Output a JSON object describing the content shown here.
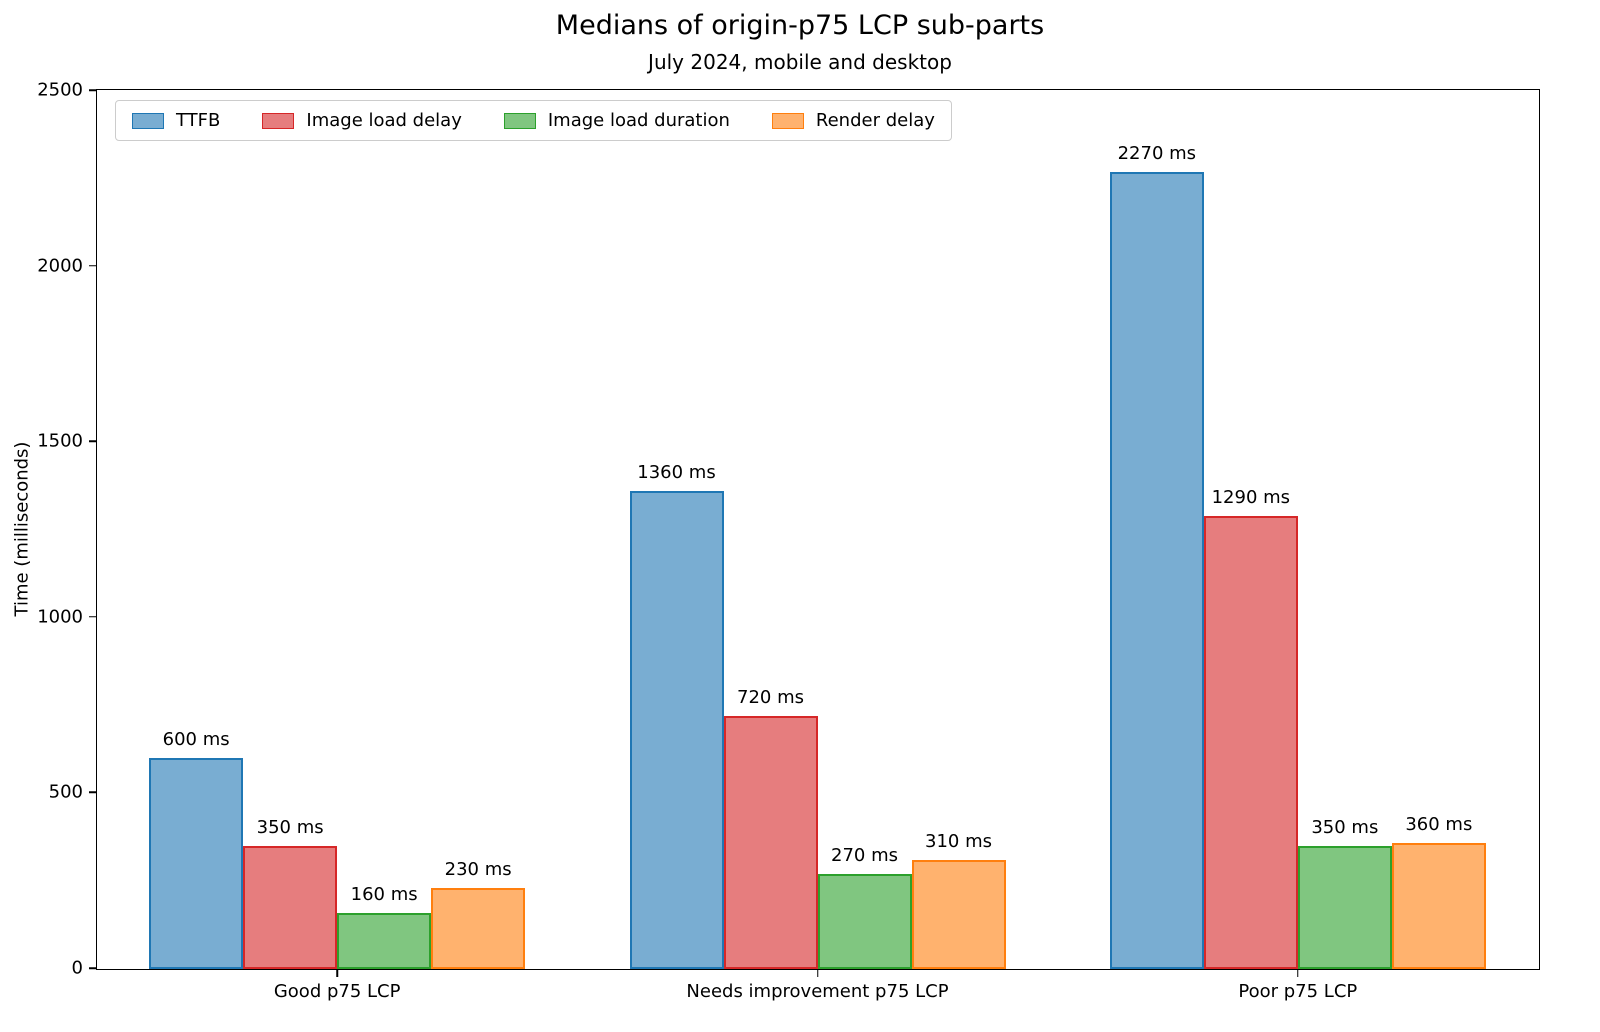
{
  "chart_data": {
    "type": "bar",
    "title": "Medians of origin-p75 LCP sub-parts",
    "subtitle": "July 2024, mobile and desktop",
    "categories": [
      "Good p75 LCP",
      "Needs improvement p75 LCP",
      "Poor p75 LCP"
    ],
    "series": [
      {
        "name": "TTFB",
        "values": [
          600,
          1360,
          2270
        ],
        "fill": "#79add2",
        "edge": "#1f77b4"
      },
      {
        "name": "Image load delay",
        "values": [
          350,
          720,
          1290
        ],
        "fill": "#e67d7e",
        "edge": "#d62728"
      },
      {
        "name": "Image load duration",
        "values": [
          160,
          270,
          350
        ],
        "fill": "#80c680",
        "edge": "#2ca02c"
      },
      {
        "name": "Render delay",
        "values": [
          230,
          310,
          360
        ],
        "fill": "#ffb26e",
        "edge": "#ff7f0e"
      }
    ],
    "value_labels": [
      [
        "600 ms",
        "1360 ms",
        "2270 ms"
      ],
      [
        "350 ms",
        "720 ms",
        "1290 ms"
      ],
      [
        "160 ms",
        "270 ms",
        "350 ms"
      ],
      [
        "230 ms",
        "310 ms",
        "360 ms"
      ]
    ],
    "value_suffix": " ms",
    "ylabel": "Time (milliseconds)",
    "ylim": [
      0,
      2500
    ],
    "yticks": [
      0,
      500,
      1000,
      1500,
      2000,
      2500
    ],
    "legend_position": "upper left",
    "grid": false
  }
}
